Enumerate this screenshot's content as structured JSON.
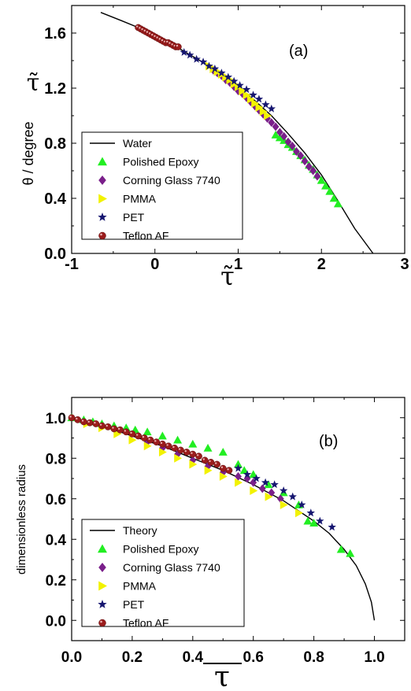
{
  "colors": {
    "Polished Epoxy": "#22ee22",
    "Corning Glass 7740": "#7a1f8a",
    "PMMA": "#f2f200",
    "PET": "#161670",
    "Teflon AF": "#9b1c1c",
    "line": "#000000"
  },
  "chart_data": [
    {
      "type": "scatter",
      "panel_label": "(a)",
      "xlabel": "τ̃",
      "ylabel": "θ / degree",
      "ylabel_inner": "τ̃",
      "xlim": [
        -1,
        3
      ],
      "ylim": [
        0,
        1.8
      ],
      "xticks": [
        "-1",
        "0",
        "1",
        "2",
        "3"
      ],
      "yticks": [
        "0.0",
        "0.4",
        "0.8",
        "1.2",
        "1.6"
      ],
      "legend_position": "lower-left",
      "line": {
        "name": "Water",
        "x": [
          -0.65,
          -0.4,
          -0.2,
          0.0,
          0.2,
          0.4,
          0.6,
          0.8,
          1.0,
          1.2,
          1.4,
          1.6,
          1.8,
          2.0,
          2.2,
          2.4,
          2.62
        ],
        "y": [
          1.75,
          1.69,
          1.64,
          1.58,
          1.52,
          1.45,
          1.38,
          1.3,
          1.21,
          1.11,
          1.0,
          0.87,
          0.73,
          0.57,
          0.38,
          0.18,
          0.0
        ]
      },
      "series": [
        {
          "name": "Polished Epoxy",
          "marker": "triangle-up",
          "x": [
            1.45,
            1.5,
            1.55,
            1.6,
            1.65,
            1.7,
            1.75,
            1.8,
            1.85,
            1.9,
            1.95,
            2.0,
            2.05,
            2.1,
            2.15,
            2.2
          ],
          "y": [
            0.86,
            0.84,
            0.82,
            0.79,
            0.77,
            0.74,
            0.71,
            0.68,
            0.64,
            0.61,
            0.57,
            0.53,
            0.49,
            0.45,
            0.4,
            0.36
          ]
        },
        {
          "name": "Corning Glass 7740",
          "marker": "diamond",
          "x": [
            0.7,
            0.75,
            0.8,
            0.85,
            0.9,
            0.95,
            1.0,
            1.05,
            1.1,
            1.15,
            1.2,
            1.25,
            1.3,
            1.35,
            1.4,
            1.45,
            1.5,
            1.55,
            1.6,
            1.65,
            1.7,
            1.75,
            1.8,
            1.85,
            1.9,
            1.95
          ],
          "y": [
            1.33,
            1.31,
            1.29,
            1.26,
            1.24,
            1.21,
            1.18,
            1.16,
            1.13,
            1.1,
            1.07,
            1.04,
            1.01,
            0.98,
            0.95,
            0.92,
            0.88,
            0.85,
            0.81,
            0.78,
            0.74,
            0.71,
            0.67,
            0.63,
            0.6,
            0.56
          ]
        },
        {
          "name": "PMMA",
          "marker": "triangle-right",
          "x": [
            0.65,
            0.7,
            0.75,
            0.8,
            0.85,
            0.9,
            0.95,
            1.0,
            1.05,
            1.1,
            1.15,
            1.2,
            1.25,
            1.3,
            1.35
          ],
          "y": [
            1.36,
            1.34,
            1.32,
            1.3,
            1.28,
            1.26,
            1.23,
            1.21,
            1.18,
            1.15,
            1.12,
            1.09,
            1.06,
            1.03,
            1.0
          ]
        },
        {
          "name": "PET",
          "marker": "star",
          "x": [
            0.35,
            0.42,
            0.5,
            0.58,
            0.65,
            0.72,
            0.8,
            0.88,
            0.95,
            1.02,
            1.1,
            1.18,
            1.25,
            1.33,
            1.4
          ],
          "y": [
            1.46,
            1.44,
            1.41,
            1.39,
            1.36,
            1.34,
            1.31,
            1.28,
            1.25,
            1.22,
            1.19,
            1.15,
            1.12,
            1.08,
            1.05
          ]
        },
        {
          "name": "Teflon AF",
          "marker": "sphere",
          "x": [
            -0.2,
            -0.17,
            -0.14,
            -0.11,
            -0.08,
            -0.05,
            -0.02,
            0.01,
            0.04,
            0.07,
            0.1,
            0.13,
            0.16,
            0.19,
            0.22,
            0.25,
            0.28
          ],
          "y": [
            1.64,
            1.63,
            1.62,
            1.61,
            1.6,
            1.59,
            1.58,
            1.57,
            1.56,
            1.55,
            1.54,
            1.53,
            1.53,
            1.52,
            1.51,
            1.5,
            1.5
          ]
        }
      ]
    },
    {
      "type": "scatter",
      "panel_label": "(b)",
      "xlabel": "τ",
      "ylabel": "dimensionless radius",
      "xlim": [
        0,
        1.1
      ],
      "ylim": [
        -0.1,
        1.1
      ],
      "xticks": [
        "0.0",
        "0.2",
        "0.4",
        "0.6",
        "0.8",
        "1.0"
      ],
      "yticks": [
        "0.0",
        "0.2",
        "0.4",
        "0.6",
        "0.8",
        "1.0"
      ],
      "legend_position": "lower-left",
      "line": {
        "name": "Theory",
        "x": [
          0.0,
          0.1,
          0.2,
          0.3,
          0.4,
          0.5,
          0.6,
          0.7,
          0.8,
          0.85,
          0.9,
          0.94,
          0.97,
          0.99,
          1.0
        ],
        "y": [
          1.0,
          0.96,
          0.91,
          0.86,
          0.8,
          0.74,
          0.67,
          0.59,
          0.49,
          0.43,
          0.35,
          0.27,
          0.18,
          0.09,
          0.0
        ]
      },
      "series": [
        {
          "name": "Polished Epoxy",
          "marker": "triangle-up",
          "x": [
            0.0,
            0.04,
            0.07,
            0.1,
            0.14,
            0.18,
            0.21,
            0.25,
            0.3,
            0.35,
            0.4,
            0.45,
            0.5,
            0.55,
            0.57,
            0.6,
            0.65,
            0.7,
            0.75,
            0.78,
            0.8,
            0.89,
            0.92
          ],
          "y": [
            1.0,
            0.99,
            0.98,
            0.97,
            0.96,
            0.95,
            0.94,
            0.93,
            0.91,
            0.89,
            0.87,
            0.85,
            0.83,
            0.77,
            0.74,
            0.72,
            0.67,
            0.63,
            0.57,
            0.49,
            0.48,
            0.35,
            0.33
          ]
        },
        {
          "name": "Corning Glass 7740",
          "marker": "diamond",
          "x": [
            0.25,
            0.3,
            0.35,
            0.4,
            0.45,
            0.5,
            0.55,
            0.58,
            0.6,
            0.63,
            0.66,
            0.69
          ],
          "y": [
            0.88,
            0.85,
            0.82,
            0.79,
            0.76,
            0.73,
            0.71,
            0.7,
            0.68,
            0.65,
            0.63,
            0.6
          ]
        },
        {
          "name": "PMMA",
          "marker": "triangle-right",
          "x": [
            0.05,
            0.1,
            0.15,
            0.2,
            0.25,
            0.3,
            0.35,
            0.4,
            0.45,
            0.5,
            0.55,
            0.6,
            0.65,
            0.7,
            0.75
          ],
          "y": [
            0.97,
            0.95,
            0.92,
            0.89,
            0.86,
            0.83,
            0.8,
            0.77,
            0.74,
            0.71,
            0.68,
            0.64,
            0.61,
            0.57,
            0.53
          ]
        },
        {
          "name": "PET",
          "marker": "star",
          "x": [
            0.55,
            0.58,
            0.61,
            0.64,
            0.67,
            0.7,
            0.73,
            0.76,
            0.79,
            0.82,
            0.86
          ],
          "y": [
            0.75,
            0.72,
            0.7,
            0.68,
            0.67,
            0.64,
            0.61,
            0.57,
            0.53,
            0.49,
            0.46
          ]
        },
        {
          "name": "Teflon AF",
          "marker": "sphere",
          "x": [
            0.0,
            0.02,
            0.04,
            0.06,
            0.08,
            0.1,
            0.12,
            0.14,
            0.16,
            0.18,
            0.2,
            0.22,
            0.24,
            0.26,
            0.28,
            0.3,
            0.32,
            0.34,
            0.36,
            0.38,
            0.4,
            0.42,
            0.44,
            0.46,
            0.48,
            0.5,
            0.52
          ],
          "y": [
            1.0,
            0.99,
            0.98,
            0.975,
            0.97,
            0.96,
            0.955,
            0.945,
            0.94,
            0.93,
            0.92,
            0.91,
            0.9,
            0.89,
            0.88,
            0.87,
            0.86,
            0.85,
            0.84,
            0.83,
            0.82,
            0.81,
            0.79,
            0.78,
            0.77,
            0.75,
            0.74
          ]
        }
      ]
    }
  ]
}
